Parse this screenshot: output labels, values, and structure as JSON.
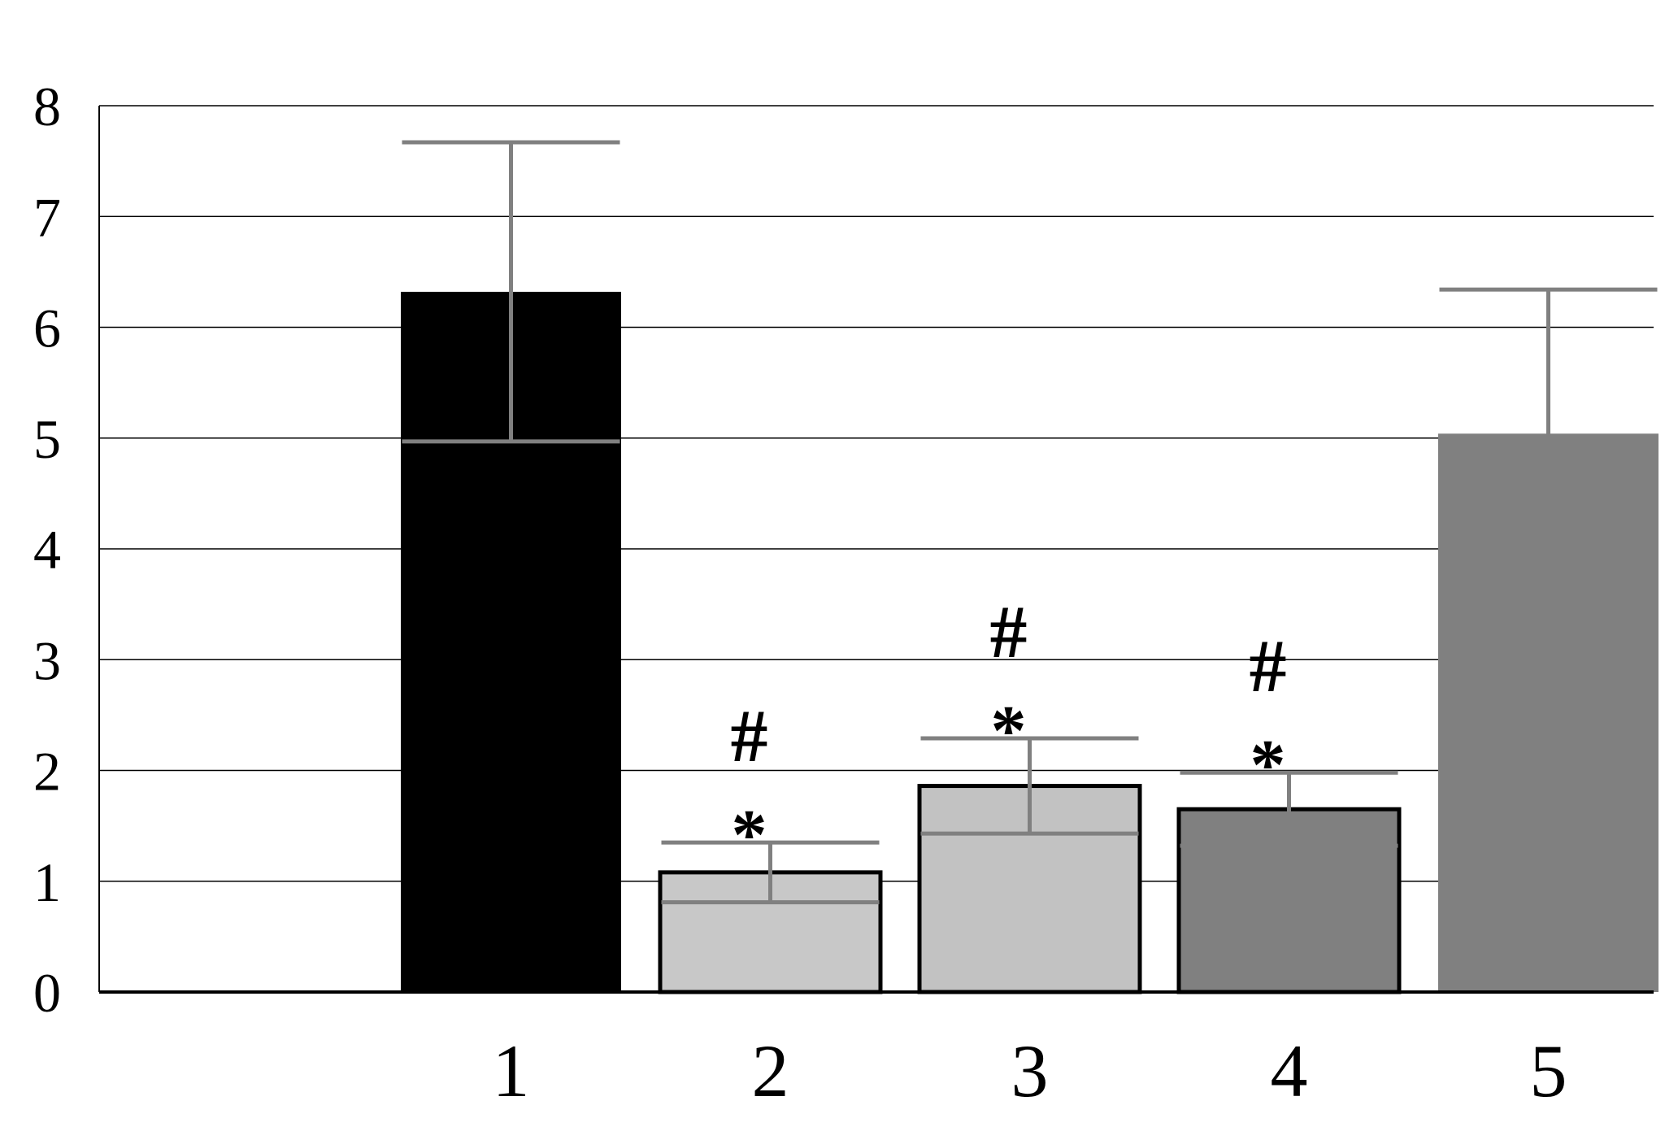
{
  "chart_data": {
    "type": "bar",
    "title": "",
    "xlabel": "",
    "ylabel": "",
    "ylim": [
      0,
      8
    ],
    "yticks": [
      "0",
      "1",
      "2",
      "3",
      "4",
      "5",
      "6",
      "7",
      "8"
    ],
    "grid": true,
    "legend": "none",
    "categories": [
      "1",
      "2",
      "3",
      "4",
      "5"
    ],
    "values": [
      6.32,
      1.08,
      1.86,
      1.65,
      5.04
    ],
    "errors": [
      1.35,
      0.27,
      0.43,
      0.33,
      1.3
    ],
    "colors": [
      "#000000",
      "#c8c8c8",
      "#c2c2c2",
      "#808080",
      "#808080"
    ],
    "outlined": [
      false,
      true,
      true,
      true,
      false
    ],
    "annotations": [
      {
        "category": "2",
        "marks": [
          "#",
          "*"
        ]
      },
      {
        "category": "3",
        "marks": [
          "#",
          "*"
        ]
      },
      {
        "category": "4",
        "marks": [
          "#",
          "*"
        ]
      }
    ],
    "error_bar_color": "#808080",
    "grid_color": "#000000"
  }
}
